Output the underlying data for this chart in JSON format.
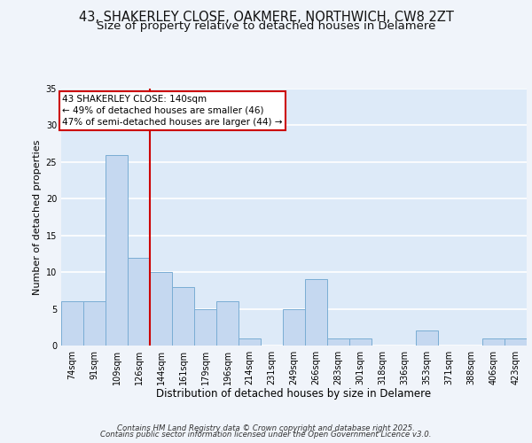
{
  "title_line1": "43, SHAKERLEY CLOSE, OAKMERE, NORTHWICH, CW8 2ZT",
  "title_line2": "Size of property relative to detached houses in Delamere",
  "xlabel": "Distribution of detached houses by size in Delamere",
  "ylabel": "Number of detached properties",
  "categories": [
    "74sqm",
    "91sqm",
    "109sqm",
    "126sqm",
    "144sqm",
    "161sqm",
    "179sqm",
    "196sqm",
    "214sqm",
    "231sqm",
    "249sqm",
    "266sqm",
    "283sqm",
    "301sqm",
    "318sqm",
    "336sqm",
    "353sqm",
    "371sqm",
    "388sqm",
    "406sqm",
    "423sqm"
  ],
  "values": [
    6,
    6,
    26,
    12,
    10,
    8,
    5,
    6,
    1,
    0,
    5,
    9,
    1,
    1,
    0,
    0,
    2,
    0,
    0,
    1,
    1
  ],
  "bar_color": "#c5d8f0",
  "bar_edge_color": "#7aadd4",
  "background_color": "#ddeaf8",
  "grid_color": "#ffffff",
  "vline_color": "#cc0000",
  "vline_x_index": 3.5,
  "annotation_text": "43 SHAKERLEY CLOSE: 140sqm\n← 49% of detached houses are smaller (46)\n47% of semi-detached houses are larger (44) →",
  "annotation_box_facecolor": "#ffffff",
  "annotation_box_edgecolor": "#cc0000",
  "footer_line1": "Contains HM Land Registry data © Crown copyright and database right 2025.",
  "footer_line2": "Contains public sector information licensed under the Open Government Licence v3.0.",
  "ylim": [
    0,
    35
  ],
  "yticks": [
    0,
    5,
    10,
    15,
    20,
    25,
    30,
    35
  ],
  "fig_bg_color": "#f0f4fa",
  "title_fontsize": 10.5,
  "subtitle_fontsize": 9.5,
  "xlabel_fontsize": 8.5,
  "ylabel_fontsize": 8.0,
  "tick_fontsize": 7.0,
  "annotation_fontsize": 7.5,
  "footer_fontsize": 6.2
}
